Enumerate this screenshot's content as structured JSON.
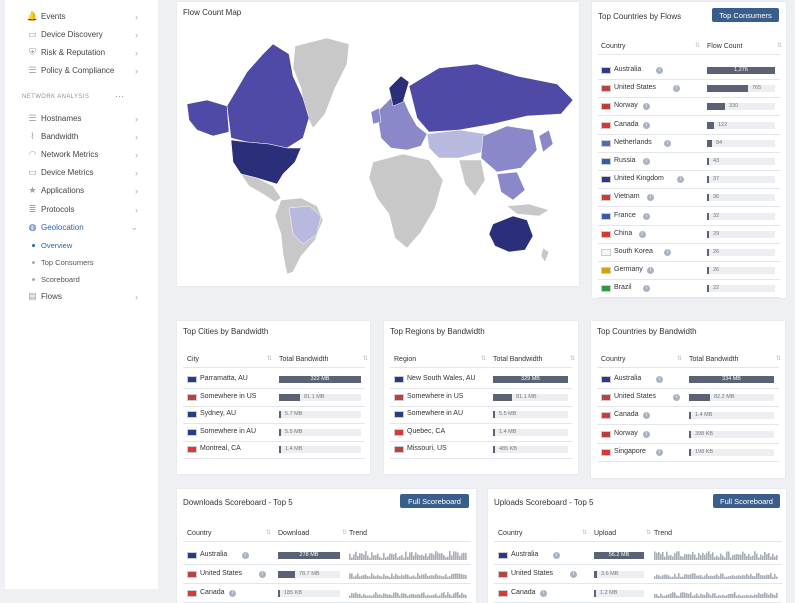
{
  "sidebar": {
    "items": [
      {
        "label": "Events",
        "icon": "bell-icon",
        "glyph": "🔔"
      },
      {
        "label": "Device Discovery",
        "icon": "device-icon",
        "glyph": "▭"
      },
      {
        "label": "Risk & Reputation",
        "icon": "shield-icon",
        "glyph": "⛨"
      },
      {
        "label": "Policy & Compliance",
        "icon": "list-icon",
        "glyph": "☰"
      }
    ],
    "section_header": "NETWORK ANALYSIS",
    "section_more": "···",
    "analysis_items": [
      {
        "label": "Hostnames",
        "icon": "list-icon",
        "glyph": "☰"
      },
      {
        "label": "Bandwidth",
        "icon": "chart-icon",
        "glyph": "⌇"
      },
      {
        "label": "Network Metrics",
        "icon": "wifi-icon",
        "glyph": "◠"
      },
      {
        "label": "Device Metrics",
        "icon": "monitor-icon",
        "glyph": "▭"
      },
      {
        "label": "Applications",
        "icon": "star-icon",
        "glyph": "★"
      },
      {
        "label": "Protocols",
        "icon": "stack-icon",
        "glyph": "≣"
      },
      {
        "label": "Geolocation",
        "icon": "globe-icon",
        "glyph": "◍"
      },
      {
        "label": "Flows",
        "icon": "flows-icon",
        "glyph": "▤"
      }
    ],
    "geo_sub": [
      "Overview",
      "Top Consumers",
      "Scoreboard"
    ],
    "chevron_right": "›",
    "chevron_down": "⌄"
  },
  "map_panel": {
    "title": "Flow Count Map"
  },
  "countries_flows": {
    "title": "Top Countries by Flows",
    "button": "Top Consumers",
    "col1": "Country",
    "col2": "Flow Count",
    "rows": [
      {
        "name": "Australia",
        "value": "1,276",
        "frac": 1.0,
        "flag": "au"
      },
      {
        "name": "United States",
        "value": "765",
        "frac": 0.6,
        "flag": "us"
      },
      {
        "name": "Norway",
        "value": "330",
        "frac": 0.26,
        "flag": "no"
      },
      {
        "name": "Canada",
        "value": "122",
        "frac": 0.1,
        "flag": "ca"
      },
      {
        "name": "Netherlands",
        "value": "84",
        "frac": 0.07,
        "flag": "nl"
      },
      {
        "name": "Russia",
        "value": "43",
        "frac": 0.035,
        "flag": "ru"
      },
      {
        "name": "United Kingdom",
        "value": "37",
        "frac": 0.03,
        "flag": "gb"
      },
      {
        "name": "Vietnam",
        "value": "36",
        "frac": 0.03,
        "flag": "vn"
      },
      {
        "name": "France",
        "value": "32",
        "frac": 0.025,
        "flag": "fr"
      },
      {
        "name": "China",
        "value": "29",
        "frac": 0.023,
        "flag": "cn"
      },
      {
        "name": "South Korea",
        "value": "26",
        "frac": 0.02,
        "flag": "kr"
      },
      {
        "name": "Germany",
        "value": "26",
        "frac": 0.02,
        "flag": "de"
      },
      {
        "name": "Brazil",
        "value": "22",
        "frac": 0.017,
        "flag": "br"
      }
    ]
  },
  "cities": {
    "title": "Top Cities by Bandwidth",
    "col1": "City",
    "col2": "Total Bandwidth",
    "rows": [
      {
        "name": "Parramatta, AU",
        "value": "322 MB",
        "frac": 1.0,
        "flag": "au"
      },
      {
        "name": "Somewhere in US",
        "value": "81.1 MB",
        "frac": 0.25,
        "flag": "us"
      },
      {
        "name": "Sydney, AU",
        "value": "5.7 MB",
        "frac": 0.02,
        "flag": "au"
      },
      {
        "name": "Somewhere in AU",
        "value": "5.5 MB",
        "frac": 0.02,
        "flag": "au"
      },
      {
        "name": "Montreal, CA",
        "value": "1.4 MB",
        "frac": 0.004,
        "flag": "ca"
      }
    ]
  },
  "regions": {
    "title": "Top Regions by Bandwidth",
    "col1": "Region",
    "col2": "Total Bandwidth",
    "rows": [
      {
        "name": "New South Wales, AU",
        "value": "329 MB",
        "frac": 1.0,
        "flag": "au"
      },
      {
        "name": "Somewhere in US",
        "value": "81.1 MB",
        "frac": 0.25,
        "flag": "us"
      },
      {
        "name": "Somewhere in AU",
        "value": "5.5 MB",
        "frac": 0.02,
        "flag": "au"
      },
      {
        "name": "Quebec, CA",
        "value": "1.4 MB",
        "frac": 0.004,
        "flag": "ca"
      },
      {
        "name": "Missouri, US",
        "value": "485 KB",
        "frac": 0.0015,
        "flag": "us"
      }
    ]
  },
  "countries_bw": {
    "title": "Top Countries by Bandwidth",
    "col1": "Country",
    "col2": "Total Bandwidth",
    "rows": [
      {
        "name": "Australia",
        "value": "334 MB",
        "frac": 1.0,
        "flag": "au"
      },
      {
        "name": "United States",
        "value": "82.2 MB",
        "frac": 0.25,
        "flag": "us"
      },
      {
        "name": "Canada",
        "value": "1.4 MB",
        "frac": 0.004,
        "flag": "ca"
      },
      {
        "name": "Norway",
        "value": "398 KB",
        "frac": 0.0012,
        "flag": "no"
      },
      {
        "name": "Singapore",
        "value": "198 KB",
        "frac": 0.0006,
        "flag": "sg"
      }
    ]
  },
  "downloads": {
    "title": "Downloads Scoreboard - Top 5",
    "button": "Full Scoreboard",
    "col1": "Country",
    "col2": "Download",
    "col3": "Trend",
    "rows": [
      {
        "name": "Australia",
        "value": "278 MB",
        "frac": 1.0,
        "flag": "au"
      },
      {
        "name": "United States",
        "value": "78.7 MB",
        "frac": 0.28,
        "flag": "us"
      },
      {
        "name": "Canada",
        "value": "185 KB",
        "frac": 0.001,
        "flag": "ca"
      }
    ]
  },
  "uploads": {
    "title": "Uploads Scoreboard - Top 5",
    "button": "Full Scoreboard",
    "col1": "Country",
    "col2": "Upload",
    "col3": "Trend",
    "rows": [
      {
        "name": "Australia",
        "value": "56.2 MB",
        "frac": 1.0,
        "flag": "au"
      },
      {
        "name": "United States",
        "value": "3.6 MB",
        "frac": 0.06,
        "flag": "us"
      },
      {
        "name": "Canada",
        "value": "1.2 MB",
        "frac": 0.02,
        "flag": "ca"
      }
    ]
  },
  "colors": {
    "accent": "#2a66b0",
    "button": "#3a5e8c",
    "bar": "#5b6275",
    "map_dark": "#2b2f7a",
    "map_mid": "#4f4aa6",
    "map_light": "#8a88c8",
    "map_pale": "#b9b8de",
    "map_none": "#c8c8c8"
  },
  "sort_glyph": "⇅",
  "info_glyph": "i"
}
